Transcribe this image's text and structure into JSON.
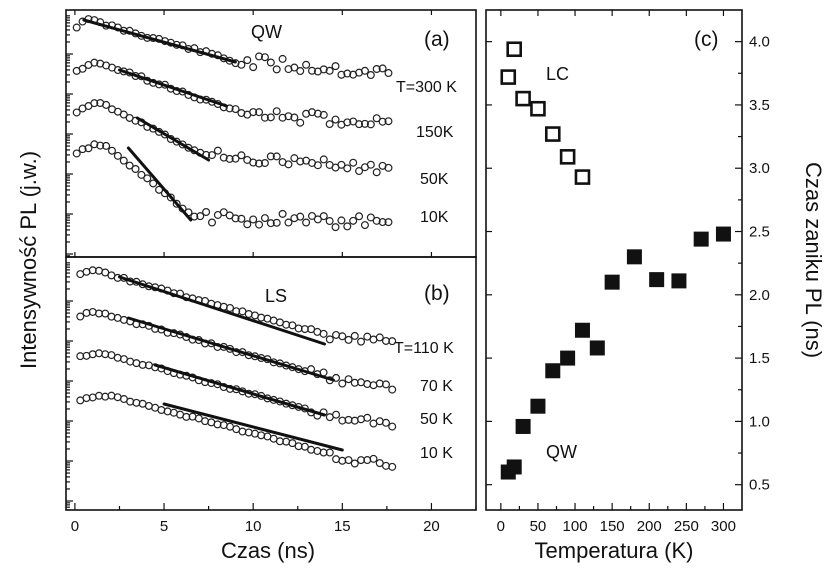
{
  "chart_data": [
    {
      "id": "a",
      "type": "scatter",
      "panel_label": "(a)",
      "tag": "QW",
      "xlabel": "Czas (ns)",
      "ylabel": "Intensywność PL (j.w.)",
      "xlim": [
        -0.5,
        22.5
      ],
      "xticks": [
        "0",
        "5",
        "10",
        "15",
        "20"
      ],
      "y_scale": "log (arbitrary units, curves offset vertically)",
      "series": [
        {
          "name": "T=300 K",
          "fit_x": [
            0.5,
            9
          ]
        },
        {
          "name": "150K",
          "fit_x": [
            2.5,
            8.5
          ]
        },
        {
          "name": "50K",
          "fit_x": [
            3.5,
            7.5
          ]
        },
        {
          "name": "10K",
          "fit_x": [
            3,
            6.5
          ]
        }
      ]
    },
    {
      "id": "b",
      "type": "scatter",
      "panel_label": "(b)",
      "tag": "LS",
      "xlabel": "Czas (ns)",
      "xlim": [
        -0.5,
        22.5
      ],
      "xticks": [
        "0",
        "5",
        "10",
        "15",
        "20"
      ],
      "y_scale": "log (arbitrary units, curves offset vertically)",
      "series": [
        {
          "name": "T=110 K",
          "fit_x": [
            2.5,
            14
          ]
        },
        {
          "name": "70 K",
          "fit_x": [
            3,
            14.5
          ]
        },
        {
          "name": "50 K",
          "fit_x": [
            4.5,
            14
          ]
        },
        {
          "name": "10 K",
          "fit_x": [
            5,
            15
          ]
        }
      ]
    },
    {
      "id": "c",
      "type": "scatter",
      "panel_label": "(c)",
      "xlabel": "Temperatura (K)",
      "ylabel": "Czas zaniku PL (ns)",
      "xlim": [
        -20,
        325
      ],
      "ylim": [
        0.3,
        4.25
      ],
      "xticks": [
        0,
        50,
        100,
        150,
        200,
        250,
        300
      ],
      "yticks": [
        "0.5",
        "1.0",
        "1.5",
        "2.0",
        "2.5",
        "3.0",
        "3.5",
        "4.0"
      ],
      "series": [
        {
          "name": "LC",
          "marker": "open-square",
          "points": [
            [
              10,
              3.72
            ],
            [
              18,
              3.94
            ],
            [
              30,
              3.55
            ],
            [
              50,
              3.47
            ],
            [
              70,
              3.27
            ],
            [
              90,
              3.09
            ],
            [
              110,
              2.93
            ]
          ]
        },
        {
          "name": "QW",
          "marker": "filled-square",
          "points": [
            [
              10,
              0.6
            ],
            [
              18,
              0.64
            ],
            [
              30,
              0.96
            ],
            [
              50,
              1.12
            ],
            [
              70,
              1.4
            ],
            [
              90,
              1.5
            ],
            [
              110,
              1.72
            ],
            [
              130,
              1.58
            ],
            [
              150,
              2.1
            ],
            [
              180,
              2.3
            ],
            [
              210,
              2.12
            ],
            [
              240,
              2.11
            ],
            [
              270,
              2.44
            ],
            [
              300,
              2.48
            ]
          ]
        }
      ]
    }
  ]
}
